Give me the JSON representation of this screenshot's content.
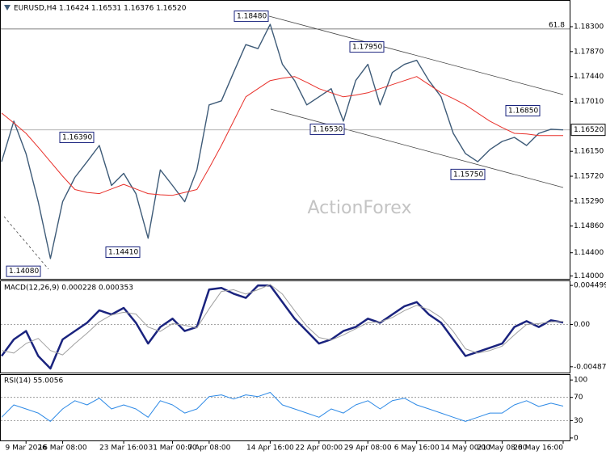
{
  "chart_data": [
    {
      "type": "line",
      "title": "EURUSD,H4  1.16424 1.16531 1.16376 1.16520",
      "watermark": "ActionForex",
      "categories": [
        null,
        null,
        "9 Mar 2026",
        null,
        null,
        "16 Mar 08:00",
        null,
        null,
        null,
        null,
        "23 Mar 16:00",
        null,
        null,
        null,
        "31 Mar 00:00",
        null,
        null,
        "7 Apr 08:00",
        null,
        null,
        null,
        null,
        "14 Apr 16:00",
        null,
        null,
        null,
        "22 Apr 00:00",
        null,
        null,
        null,
        "29 Apr 08:00",
        null,
        null,
        null,
        "6 May 16:00",
        null,
        null,
        null,
        "14 May 00:00",
        null,
        null,
        "21 May 08:00",
        null,
        null,
        null,
        null,
        "28 May 16:00"
      ],
      "series": [
        {
          "color": "#3e5b78",
          "values": [
            1.1597,
            1.1667,
            1.1611,
            1.1528,
            1.143,
            1.1528,
            1.157,
            1.1597,
            1.1625,
            1.1556,
            1.1577,
            1.1542,
            1.1465,
            1.1583,
            1.1556,
            1.1528,
            1.1583,
            1.1695,
            1.1702,
            1.1751,
            1.1799,
            1.1792,
            1.1834,
            1.1765,
            1.1737,
            1.1695,
            1.1709,
            1.1723,
            1.1667,
            1.1737,
            1.1765,
            1.1695,
            1.1751,
            1.1765,
            1.1772,
            1.1737,
            1.1709,
            1.1646,
            1.1611,
            1.1597,
            1.1618,
            1.1632,
            1.1639,
            1.1625,
            1.1646,
            1.1653,
            1.1652
          ]
        },
        {
          "color": "#e8302a",
          "values": [
            1.1681,
            1.1664,
            1.1646,
            1.1622,
            1.1597,
            1.1572,
            1.1549,
            1.1544,
            1.1542,
            1.155,
            1.1558,
            1.155,
            1.1542,
            1.154,
            1.1539,
            1.1544,
            1.1549,
            1.1586,
            1.1625,
            1.1667,
            1.1709,
            1.1723,
            1.1737,
            1.1741,
            1.1744,
            1.1734,
            1.1723,
            1.1716,
            1.1709,
            1.1712,
            1.1716,
            1.1723,
            1.173,
            1.1737,
            1.1744,
            1.173,
            1.1716,
            1.1706,
            1.1695,
            1.1681,
            1.1667,
            1.1656,
            1.1646,
            1.1645,
            1.1642,
            1.1642,
            1.1642
          ]
        }
      ],
      "ylim": [
        1.1395,
        1.1876
      ],
      "yticks": [
        {
          "value": 1.183,
          "label": "1.18300"
        },
        {
          "value": 1.1787,
          "label": "1.17870"
        },
        {
          "value": 1.1744,
          "label": "1.17440"
        },
        {
          "value": 1.1701,
          "label": "1.17010"
        },
        {
          "value": 1.1615,
          "label": "1.16150"
        },
        {
          "value": 1.1572,
          "label": "1.15720"
        },
        {
          "value": 1.1529,
          "label": "1.15290"
        },
        {
          "value": 1.1486,
          "label": "1.14860"
        },
        {
          "value": 1.144,
          "label": "1.14400"
        },
        {
          "value": 1.14,
          "label": "1.14000"
        }
      ],
      "annotations": [
        {
          "value": 1.1848,
          "label": "1.18480"
        },
        {
          "value": 1.1795,
          "label": "1.17950"
        },
        {
          "value": 1.1639,
          "label": "1.16390"
        },
        {
          "value": 1.1653,
          "label": "1.16530"
        },
        {
          "value": 1.1575,
          "label": "1.15750"
        },
        {
          "value": 1.1685,
          "label": "1.16850"
        },
        {
          "value": 1.1441,
          "label": "1.14410"
        },
        {
          "value": 1.1408,
          "label": "1.14080"
        }
      ],
      "levels": [
        {
          "value": 1.1826,
          "label": "61.8"
        }
      ],
      "last_price": {
        "value": 1.1652,
        "label": "1.16520"
      }
    },
    {
      "type": "line",
      "title": "MACD(12,26,9) 0.000228 0.000353",
      "series": [
        {
          "color": "#1a237e",
          "values": [
            -0.00363,
            -0.00172,
            -0.00076,
            -0.00363,
            -0.00507,
            -0.00172,
            -0.00076,
            0.00019,
            0.00163,
            0.00115,
            0.00191,
            0.00019,
            -0.0022,
            -0.00029,
            0.00067,
            -0.00076,
            -0.00029,
            0.00402,
            0.00421,
            0.00354,
            0.00306,
            0.00449,
            0.00449,
            0.00258,
            0.00067,
            -0.00076,
            -0.0022,
            -0.00172,
            -0.00076,
            -0.00029,
            0.00067,
            0.00019,
            0.00115,
            0.0021,
            0.00258,
            0.00115,
            0.00019,
            -0.00172,
            -0.00363,
            -0.00316,
            -0.00268,
            -0.0022,
            -0.00029,
            0.00038,
            -0.00029,
            0.00048,
            0.00023
          ]
        },
        {
          "color": "#a0a0a0",
          "values": [
            -0.003,
            -0.0033,
            -0.0022,
            -0.0016,
            -0.003,
            -0.0035,
            -0.0022,
            -0.001,
            0.0003,
            0.0011,
            0.0014,
            0.0012,
            -0.0003,
            -0.0008,
            0.0001,
            -0.0001,
            -0.0004,
            0.0018,
            0.0038,
            0.004,
            0.0035,
            0.004,
            0.0046,
            0.0035,
            0.0016,
            -0.0002,
            -0.0015,
            -0.0018,
            -0.0012,
            -0.0005,
            0.0002,
            0.0003,
            0.0008,
            0.0016,
            0.0022,
            0.0017,
            0.0008,
            -0.0008,
            -0.0028,
            -0.0033,
            -0.003,
            -0.0025,
            -0.0012,
            0.0,
            0.0001,
            0.0003,
            0.00035
          ]
        }
      ],
      "ylim": [
        -0.00554,
        0.00507
      ],
      "yticks": [
        0.004499,
        {
          "value": 0,
          "label": "0.00"
        },
        -0.004872
      ],
      "levels": [
        0
      ]
    },
    {
      "type": "line",
      "title": "RSI(14) 55.0056",
      "series": [
        {
          "color": "#2e8ae6",
          "values": [
            35.7,
            57.1,
            50,
            42.9,
            28.6,
            50,
            64.3,
            57.1,
            68.6,
            50,
            57.1,
            50,
            35.7,
            64.3,
            57.1,
            42.9,
            50,
            71.4,
            74.3,
            67.1,
            74.3,
            71.4,
            78.6,
            57.1,
            50,
            42.9,
            35.7,
            50,
            42.9,
            57.1,
            64.3,
            50,
            64.3,
            68.6,
            57.1,
            50,
            42.9,
            35.7,
            28.6,
            35.7,
            42.9,
            42.9,
            57.1,
            64.3,
            54.3,
            60,
            55
          ]
        }
      ],
      "ylim": [
        -4.3,
        110
      ],
      "yticks": [
        0,
        30,
        70,
        100
      ],
      "levels": [
        30,
        70
      ]
    }
  ]
}
